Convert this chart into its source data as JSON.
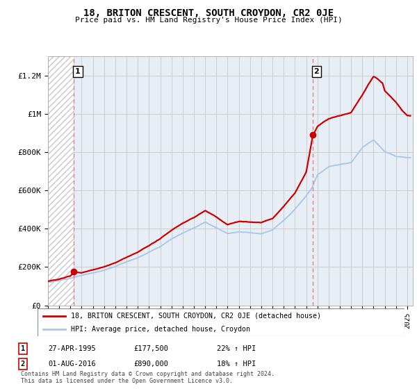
{
  "title": "18, BRITON CRESCENT, SOUTH CROYDON, CR2 0JE",
  "subtitle": "Price paid vs. HM Land Registry's House Price Index (HPI)",
  "ylim": [
    0,
    1300000
  ],
  "xlim_start": 1993.0,
  "xlim_end": 2025.5,
  "yticks": [
    0,
    200000,
    400000,
    600000,
    800000,
    1000000,
    1200000
  ],
  "ytick_labels": [
    "£0",
    "£200K",
    "£400K",
    "£600K",
    "£800K",
    "£1M",
    "£1.2M"
  ],
  "transaction1_date": 1995.32,
  "transaction1_price": 177500,
  "transaction2_date": 2016.58,
  "transaction2_price": 890000,
  "legend_line1": "18, BRITON CRESCENT, SOUTH CROYDON, CR2 0JE (detached house)",
  "legend_line2": "HPI: Average price, detached house, Croydon",
  "footer": "Contains HM Land Registry data © Crown copyright and database right 2024.\nThis data is licensed under the Open Government Licence v3.0.",
  "hpi_color": "#aac8e8",
  "price_color": "#cc0000",
  "vline_color": "#e08080",
  "grid_color": "#cccccc",
  "bg_color": "#e8eef5",
  "hatch_color": "#c8c8c8",
  "table_rows": [
    {
      "num": "1",
      "date": "27-APR-1995",
      "price": "£177,500",
      "pct": "22% ↑ HPI"
    },
    {
      "num": "2",
      "date": "01-AUG-2016",
      "price": "£890,000",
      "pct": "18% ↑ HPI"
    }
  ]
}
